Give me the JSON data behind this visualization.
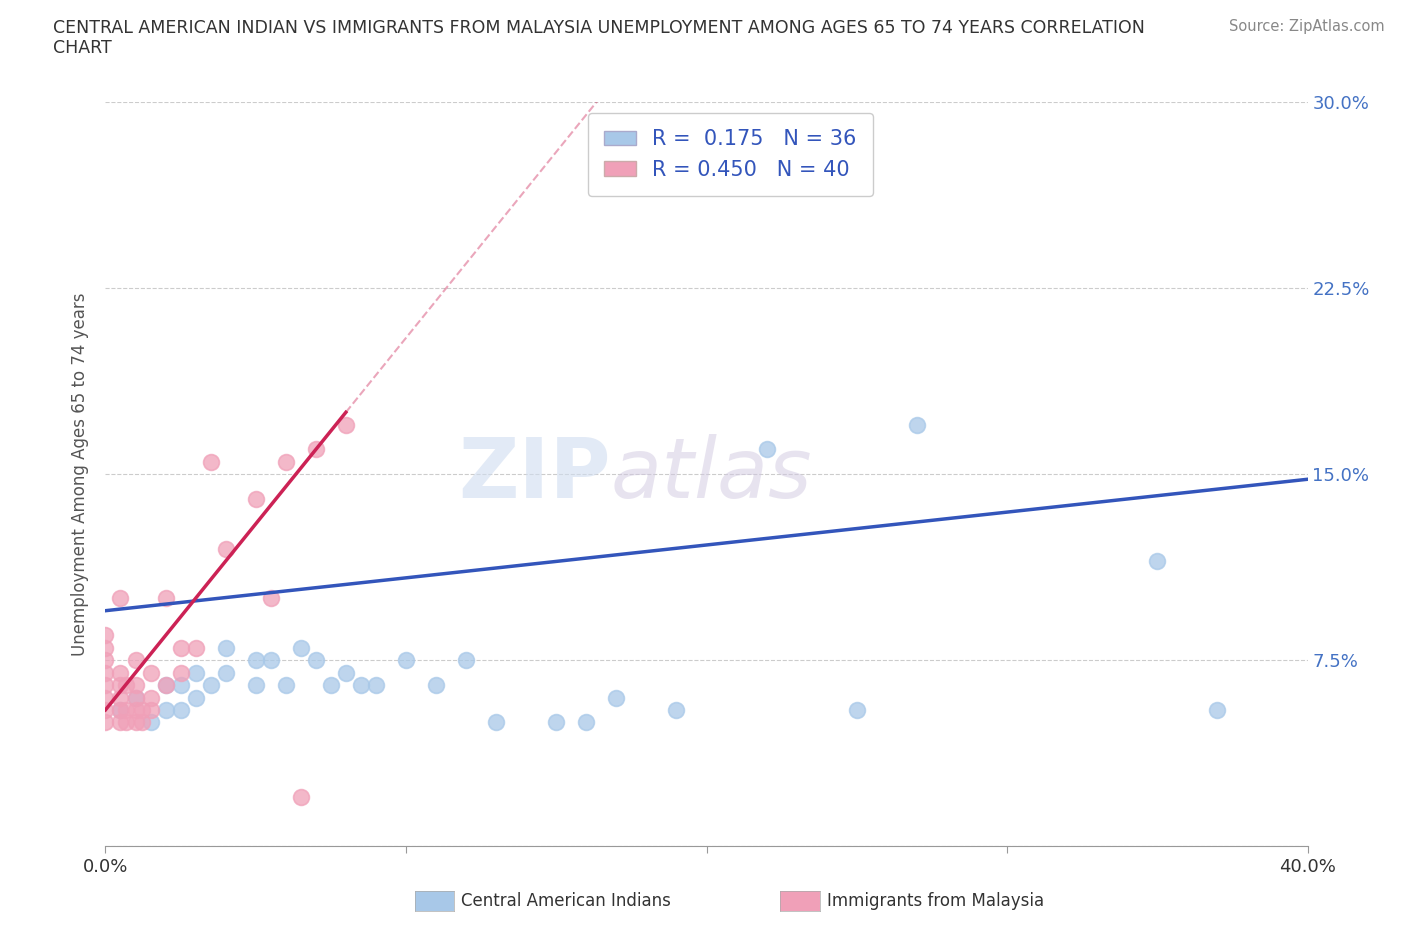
{
  "title_line1": "CENTRAL AMERICAN INDIAN VS IMMIGRANTS FROM MALAYSIA UNEMPLOYMENT AMONG AGES 65 TO 74 YEARS CORRELATION",
  "title_line2": "CHART",
  "source": "Source: ZipAtlas.com",
  "ylabel": "Unemployment Among Ages 65 to 74 years",
  "xlim": [
    0.0,
    0.4
  ],
  "ylim": [
    0.0,
    0.3
  ],
  "color_blue": "#a8c8e8",
  "color_pink": "#f0a0b8",
  "trend_blue": "#3355bb",
  "trend_pink": "#cc2255",
  "R_blue": 0.175,
  "N_blue": 36,
  "R_pink": 0.45,
  "N_pink": 40,
  "legend_label_blue": "Central American Indians",
  "legend_label_pink": "Immigrants from Malaysia",
  "watermark": "ZIPatlas",
  "blue_points_x": [
    0.005,
    0.01,
    0.015,
    0.02,
    0.02,
    0.025,
    0.025,
    0.03,
    0.03,
    0.035,
    0.04,
    0.04,
    0.05,
    0.05,
    0.055,
    0.06,
    0.065,
    0.07,
    0.075,
    0.08,
    0.085,
    0.09,
    0.1,
    0.11,
    0.12,
    0.13,
    0.15,
    0.16,
    0.17,
    0.19,
    0.2,
    0.22,
    0.25,
    0.27,
    0.35,
    0.37
  ],
  "blue_points_y": [
    0.055,
    0.06,
    0.05,
    0.055,
    0.065,
    0.055,
    0.065,
    0.06,
    0.07,
    0.065,
    0.07,
    0.08,
    0.065,
    0.075,
    0.075,
    0.065,
    0.08,
    0.075,
    0.065,
    0.07,
    0.065,
    0.065,
    0.075,
    0.065,
    0.075,
    0.05,
    0.05,
    0.05,
    0.06,
    0.055,
    0.29,
    0.16,
    0.055,
    0.17,
    0.115,
    0.055
  ],
  "pink_points_x": [
    0.0,
    0.0,
    0.0,
    0.0,
    0.0,
    0.0,
    0.0,
    0.0,
    0.005,
    0.005,
    0.005,
    0.005,
    0.005,
    0.005,
    0.007,
    0.007,
    0.007,
    0.01,
    0.01,
    0.01,
    0.01,
    0.01,
    0.012,
    0.012,
    0.015,
    0.015,
    0.015,
    0.02,
    0.02,
    0.025,
    0.025,
    0.03,
    0.035,
    0.04,
    0.05,
    0.055,
    0.06,
    0.065,
    0.07,
    0.08
  ],
  "pink_points_y": [
    0.05,
    0.055,
    0.06,
    0.065,
    0.07,
    0.075,
    0.08,
    0.085,
    0.05,
    0.055,
    0.06,
    0.065,
    0.07,
    0.1,
    0.05,
    0.055,
    0.065,
    0.05,
    0.055,
    0.06,
    0.065,
    0.075,
    0.05,
    0.055,
    0.055,
    0.06,
    0.07,
    0.065,
    0.1,
    0.07,
    0.08,
    0.08,
    0.155,
    0.12,
    0.14,
    0.1,
    0.155,
    0.02,
    0.16,
    0.17
  ],
  "bg_color": "#ffffff",
  "grid_color": "#cccccc",
  "title_color": "#333333",
  "axis_label_color": "#555555",
  "right_ytick_color": "#4472c4"
}
